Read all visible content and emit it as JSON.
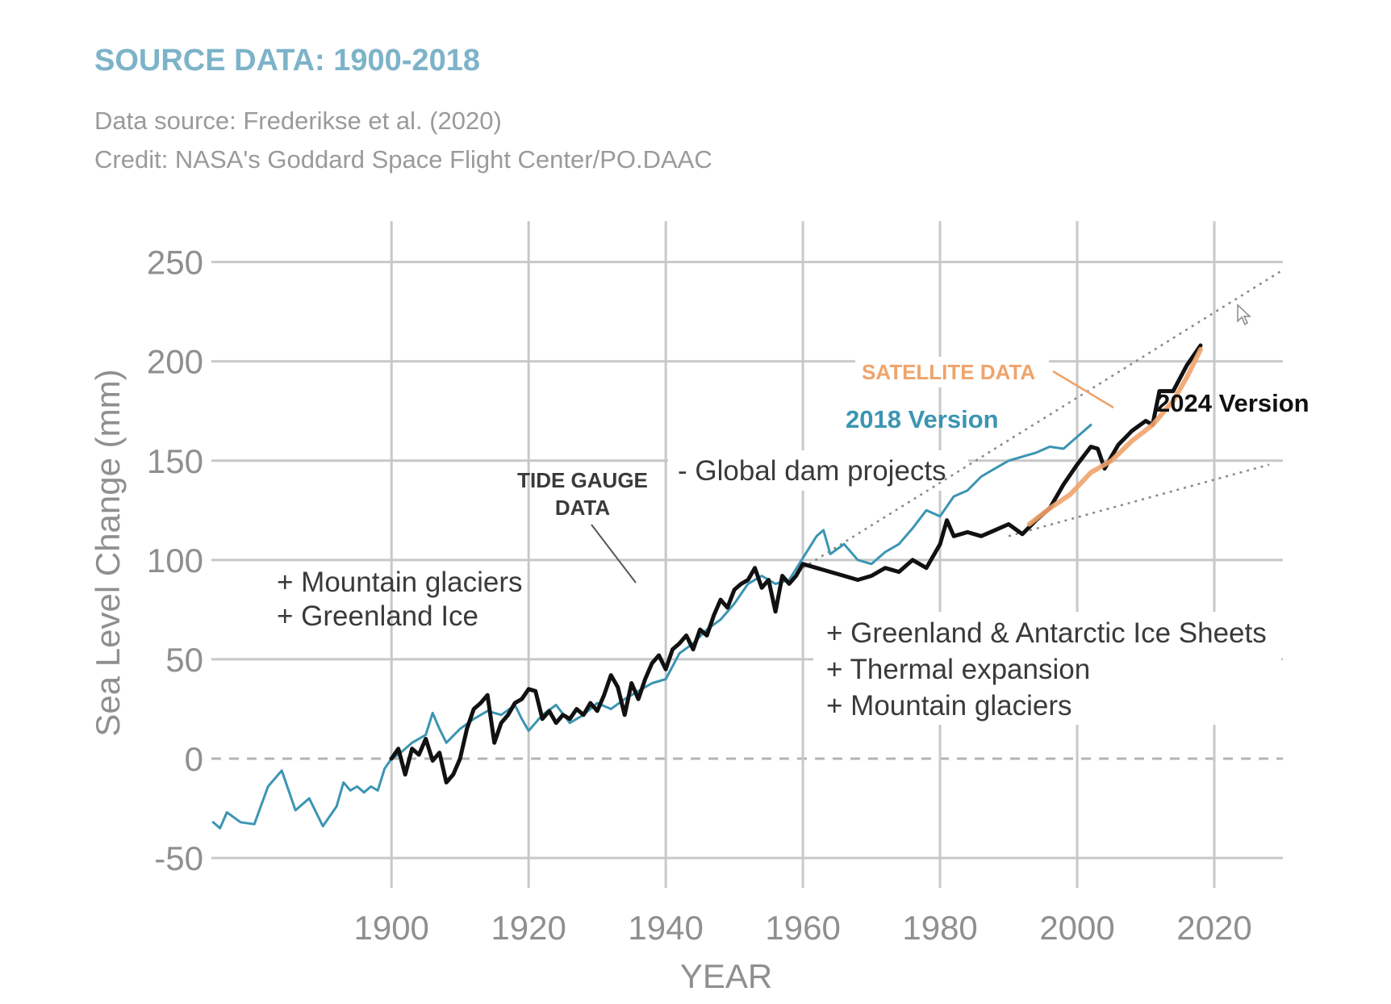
{
  "header": {
    "title": "SOURCE DATA: 1900-2018",
    "data_source": "Data source: Frederikse et al. (2020)",
    "credit": "Credit: NASA's Goddard Space Flight Center/PO.DAAC"
  },
  "colors": {
    "title": "#7db3c8",
    "version2018": "#3b95b3",
    "version2024": "#111111",
    "satellite": "#f0a36a",
    "grid": "#c8c8c8",
    "zero_line": "#b4b4b4",
    "trend": "#888888",
    "leader": "#555555"
  },
  "chart_data": {
    "type": "line",
    "title": "SOURCE DATA: 1900-2018",
    "xlabel": "YEAR",
    "ylabel": "Sea Level Change (mm)",
    "xlim": [
      1873.5,
      2030
    ],
    "ylim": [
      -65,
      260
    ],
    "x_ticks": [
      1900,
      1920,
      1940,
      1960,
      1980,
      2000,
      2020
    ],
    "y_ticks": [
      -50,
      0,
      50,
      100,
      150,
      200,
      250
    ],
    "grid": true,
    "zero_line": "dashed",
    "series": [
      {
        "name": "2018 Version",
        "key": "version2018",
        "x": [
          1874,
          1875,
          1876,
          1878,
          1880,
          1882,
          1884,
          1886,
          1888,
          1890,
          1892,
          1893,
          1894,
          1895,
          1896,
          1897,
          1898,
          1899,
          1900,
          1901,
          1902,
          1903,
          1904,
          1905,
          1906,
          1907,
          1908,
          1910,
          1912,
          1914,
          1916,
          1918,
          1919,
          1920,
          1922,
          1924,
          1926,
          1928,
          1930,
          1932,
          1934,
          1936,
          1938,
          1940,
          1942,
          1944,
          1946,
          1948,
          1950,
          1952,
          1954,
          1956,
          1958,
          1960,
          1962,
          1963,
          1964,
          1966,
          1968,
          1970,
          1972,
          1974,
          1976,
          1978,
          1980,
          1982,
          1984,
          1986,
          1988,
          1990,
          1992,
          1994,
          1996,
          1998,
          2000,
          2002
        ],
        "values": [
          -32,
          -35,
          -27,
          -32,
          -33,
          -14,
          -6,
          -26,
          -20,
          -34,
          -24,
          -12,
          -16,
          -14,
          -17,
          -14,
          -16,
          -5,
          0,
          2,
          5,
          8,
          10,
          12,
          23,
          15,
          8,
          15,
          20,
          24,
          22,
          27,
          20,
          14,
          22,
          27,
          18,
          22,
          28,
          25,
          30,
          34,
          38,
          40,
          53,
          58,
          65,
          70,
          78,
          88,
          92,
          88,
          90,
          101,
          112,
          115,
          103,
          108,
          100,
          98,
          104,
          108,
          116,
          125,
          122,
          132,
          135,
          142,
          146,
          150,
          152,
          154,
          157,
          156,
          162,
          168
        ]
      },
      {
        "name": "2024 Version",
        "key": "version2024",
        "x": [
          1900,
          1901,
          1902,
          1903,
          1904,
          1905,
          1906,
          1907,
          1908,
          1909,
          1910,
          1911,
          1912,
          1913,
          1914,
          1915,
          1916,
          1917,
          1918,
          1919,
          1920,
          1921,
          1922,
          1923,
          1924,
          1925,
          1926,
          1927,
          1928,
          1929,
          1930,
          1931,
          1932,
          1933,
          1934,
          1935,
          1936,
          1937,
          1938,
          1939,
          1940,
          1941,
          1942,
          1943,
          1944,
          1945,
          1946,
          1947,
          1948,
          1949,
          1950,
          1951,
          1952,
          1953,
          1954,
          1955,
          1956,
          1957,
          1958,
          1959,
          1960,
          1962,
          1964,
          1966,
          1968,
          1970,
          1972,
          1974,
          1976,
          1978,
          1980,
          1981,
          1982,
          1984,
          1986,
          1988,
          1990,
          1992,
          1994,
          1996,
          1998,
          2000,
          2002,
          2003,
          2004,
          2005,
          2006,
          2008,
          2010,
          2011,
          2012,
          2014,
          2016,
          2018
        ],
        "values": [
          0,
          5,
          -8,
          5,
          2,
          10,
          -1,
          3,
          -12,
          -8,
          0,
          15,
          25,
          28,
          32,
          8,
          18,
          22,
          28,
          30,
          35,
          34,
          20,
          24,
          18,
          22,
          20,
          25,
          22,
          28,
          24,
          32,
          42,
          36,
          22,
          38,
          30,
          40,
          48,
          52,
          45,
          55,
          58,
          62,
          55,
          65,
          62,
          72,
          80,
          76,
          85,
          88,
          90,
          96,
          86,
          90,
          74,
          92,
          88,
          92,
          98,
          96,
          94,
          92,
          90,
          92,
          96,
          94,
          100,
          96,
          108,
          120,
          112,
          114,
          112,
          115,
          118,
          113,
          120,
          126,
          138,
          148,
          157,
          156,
          146,
          152,
          158,
          165,
          170,
          168,
          185,
          185,
          198,
          208
        ]
      },
      {
        "name": "SATELLITE DATA",
        "key": "satellite",
        "x": [
          1993,
          1996,
          1999,
          2002,
          2005,
          2008,
          2011,
          2014,
          2016,
          2018
        ],
        "values": [
          118,
          126,
          133,
          144,
          150,
          160,
          168,
          180,
          192,
          206
        ]
      }
    ],
    "trend_lines": [
      {
        "name": "trend-upper",
        "x": [
          1960,
          2030
        ],
        "values": [
          96,
          246
        ]
      },
      {
        "name": "trend-lower",
        "x": [
          1990,
          2028
        ],
        "values": [
          112,
          148
        ]
      }
    ],
    "annotations": {
      "mountain_glaciers_1": "+ Mountain glaciers",
      "greenland_ice": "+ Greenland Ice",
      "tide_gauge_1": "TIDE GAUGE",
      "tide_gauge_2": "DATA",
      "global_dam": "- Global dam projects",
      "satellite": "SATELLITE DATA",
      "version2018": "2018 Version",
      "version2024": "2024 Version",
      "ice_sheets": "+ Greenland & Antarctic Ice Sheets",
      "thermal": "+ Thermal expansion",
      "mountain_glaciers_2": "+ Mountain glaciers"
    }
  }
}
